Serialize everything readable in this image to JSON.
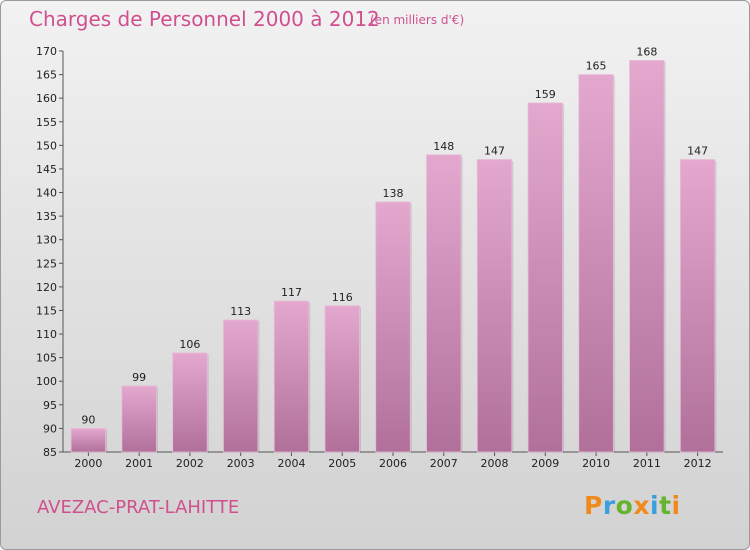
{
  "header": {
    "title": "Charges de Personnel 2000 à 2012",
    "subtitle": "(en milliers d'€)"
  },
  "footer": {
    "commune": "AVEZAC-PRAT-LAHITTE",
    "logo_letters": [
      "P",
      "r",
      "o",
      "x",
      "i",
      "t",
      "i"
    ]
  },
  "colors": {
    "accent": "#d0508f",
    "bar_top": "#e4a8cf",
    "bar_bottom": "#b0709a",
    "logo": [
      "#f08a1c",
      "#3aa0dc",
      "#66b32e",
      "#f08a1c",
      "#3aa0dc",
      "#66b32e",
      "#f08a1c"
    ]
  },
  "chart_data": {
    "type": "bar",
    "categories": [
      "2000",
      "2001",
      "2002",
      "2003",
      "2004",
      "2005",
      "2006",
      "2007",
      "2008",
      "2009",
      "2010",
      "2011",
      "2012"
    ],
    "values": [
      90,
      99,
      106,
      113,
      117,
      116,
      138,
      148,
      147,
      159,
      165,
      168,
      147
    ],
    "title": "Charges de Personnel 2000 à 2012",
    "subtitle": "(en milliers d'€)",
    "ylim": [
      85,
      170
    ],
    "yticks": [
      85,
      90,
      95,
      100,
      105,
      110,
      115,
      120,
      125,
      130,
      135,
      140,
      145,
      150,
      155,
      160,
      165,
      170
    ],
    "grid": false,
    "legend": "none"
  }
}
